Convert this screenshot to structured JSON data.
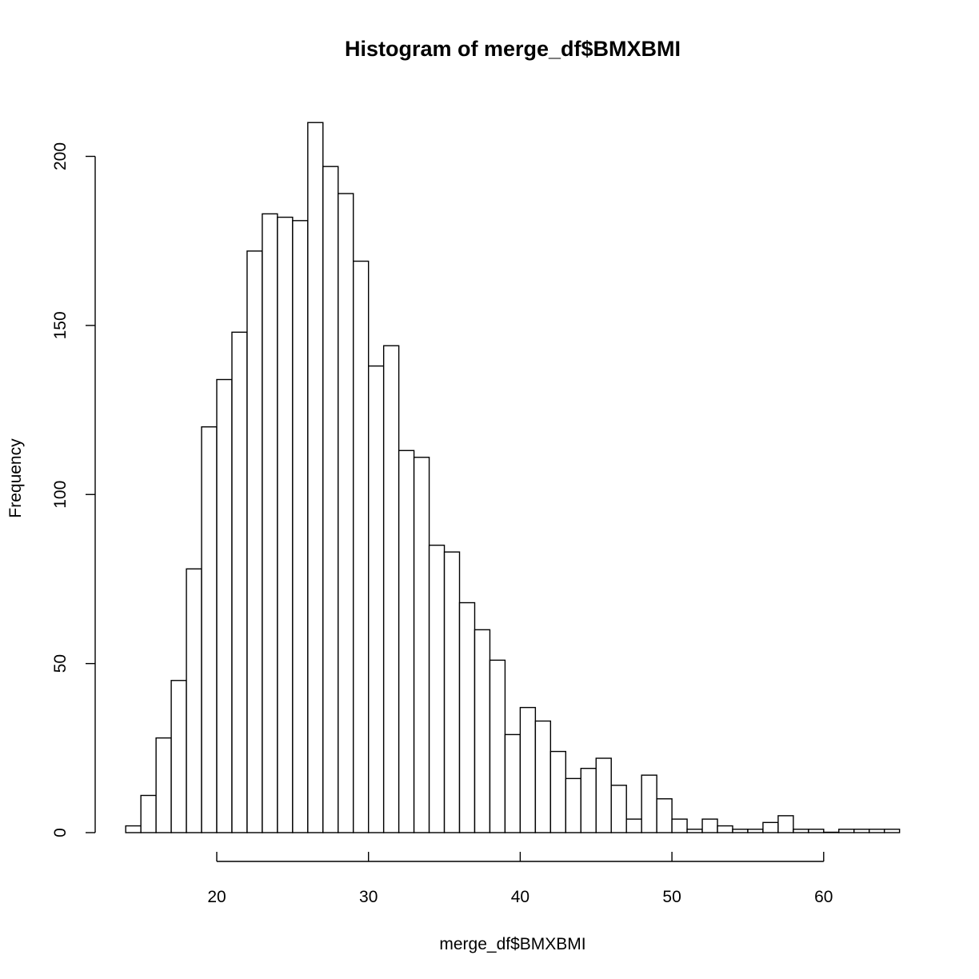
{
  "chart_data": {
    "type": "histogram",
    "title": "Histogram of merge_df$BMXBMI",
    "xlabel": "merge_df$BMXBMI",
    "ylabel": "Frequency",
    "bin_width": 1,
    "bin_start": 14,
    "bin_edges_range": [
      14,
      65
    ],
    "values": [
      2,
      11,
      28,
      45,
      78,
      120,
      134,
      148,
      172,
      183,
      182,
      181,
      210,
      197,
      189,
      169,
      138,
      144,
      113,
      111,
      85,
      83,
      68,
      60,
      51,
      29,
      37,
      33,
      24,
      16,
      19,
      22,
      14,
      4,
      17,
      10,
      4,
      1,
      4,
      2,
      1,
      1,
      3,
      5,
      1,
      1,
      0,
      1,
      1,
      1,
      1
    ],
    "x_ticks": [
      20,
      30,
      40,
      50,
      60
    ],
    "y_ticks": [
      0,
      50,
      100,
      150,
      200
    ],
    "x_tick_labels": [
      "20",
      "30",
      "40",
      "50",
      "60"
    ],
    "y_tick_labels": [
      "0",
      "50",
      "100",
      "150",
      "200"
    ],
    "xlim": [
      14,
      65
    ],
    "ylim": [
      0,
      210
    ],
    "grid": false,
    "colors": {
      "bar_fill": "#ffffff",
      "bar_stroke": "#000000"
    }
  }
}
